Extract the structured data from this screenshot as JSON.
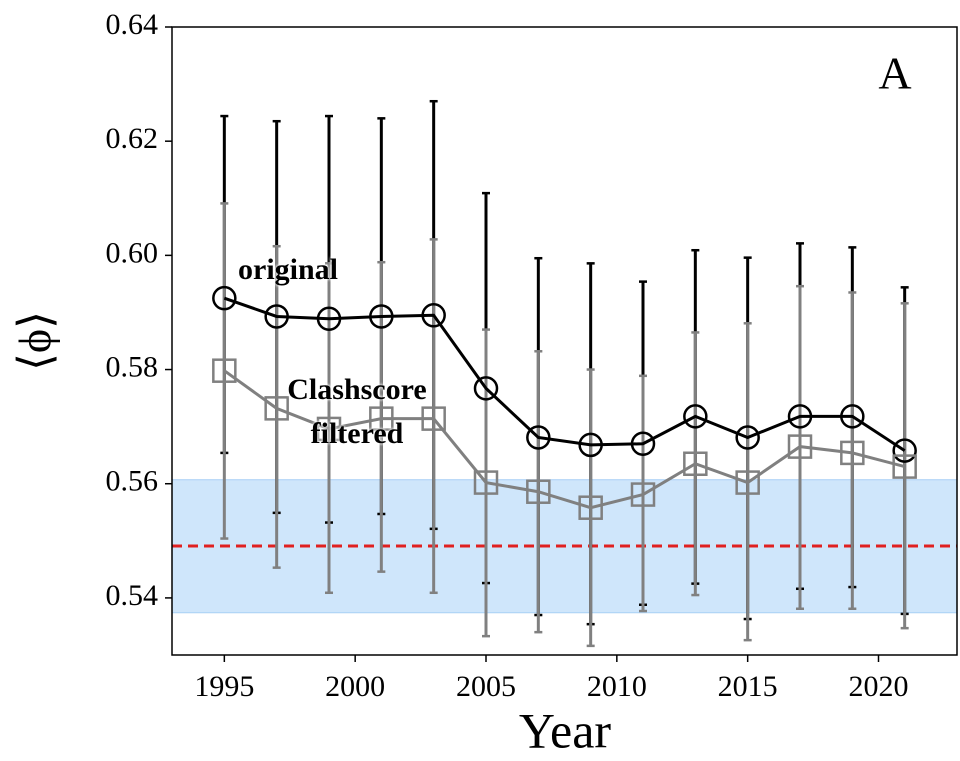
{
  "chart_data": {
    "type": "errorbar-line",
    "panel_label": "A",
    "xlabel": "Year",
    "ylabel": "⟨ϕ⟩",
    "x": [
      1995,
      1997,
      1999,
      2001,
      2003,
      2005,
      2007,
      2009,
      2011,
      2013,
      2015,
      2017,
      2019,
      2021
    ],
    "series": [
      {
        "name": "original",
        "color": "#000000",
        "marker": "circle",
        "values": [
          0.5925,
          0.5893,
          0.5889,
          0.5893,
          0.5895,
          0.5767,
          0.5681,
          0.5668,
          0.567,
          0.5718,
          0.5681,
          0.5718,
          0.5718,
          0.5658
        ],
        "lower": [
          0.5654,
          0.5549,
          0.5532,
          0.5547,
          0.5521,
          0.5426,
          0.537,
          0.5354,
          0.5388,
          0.5425,
          0.5363,
          0.5416,
          0.5419,
          0.5372
        ],
        "upper": [
          0.6244,
          0.6235,
          0.6244,
          0.624,
          0.627,
          0.6109,
          0.5995,
          0.5986,
          0.5954,
          0.6009,
          0.5996,
          0.6021,
          0.6014,
          0.5944
        ]
      },
      {
        "name": "Clashscore filtered",
        "color": "#808080",
        "marker": "square",
        "values": [
          0.5798,
          0.5732,
          0.5696,
          0.5714,
          0.5714,
          0.5602,
          0.5586,
          0.5558,
          0.5581,
          0.5635,
          0.5602,
          0.5665,
          0.5654,
          0.563
        ],
        "lower": [
          0.5504,
          0.5453,
          0.5409,
          0.5446,
          0.5409,
          0.5333,
          0.534,
          0.5316,
          0.5377,
          0.5405,
          0.5326,
          0.5381,
          0.5381,
          0.5347
        ],
        "upper": [
          0.6091,
          0.6016,
          0.5986,
          0.5988,
          0.6028,
          0.587,
          0.5832,
          0.58,
          0.5789,
          0.5865,
          0.5881,
          0.5946,
          0.5935,
          0.5916
        ]
      }
    ],
    "band": [
      0.5374,
      0.5607
    ],
    "band_color": "#cfe6fb",
    "reference_line": 0.5491,
    "reference_color": "#e02020",
    "xlim": [
      1993,
      2023
    ],
    "xticks": [
      1995,
      2000,
      2005,
      2010,
      2015,
      2020
    ],
    "ylim": [
      0.53,
      0.64
    ],
    "yticks": [
      0.54,
      0.56,
      0.58,
      {
        "value": 0.6,
        "label": "0.60"
      },
      0.62,
      0.64
    ]
  }
}
